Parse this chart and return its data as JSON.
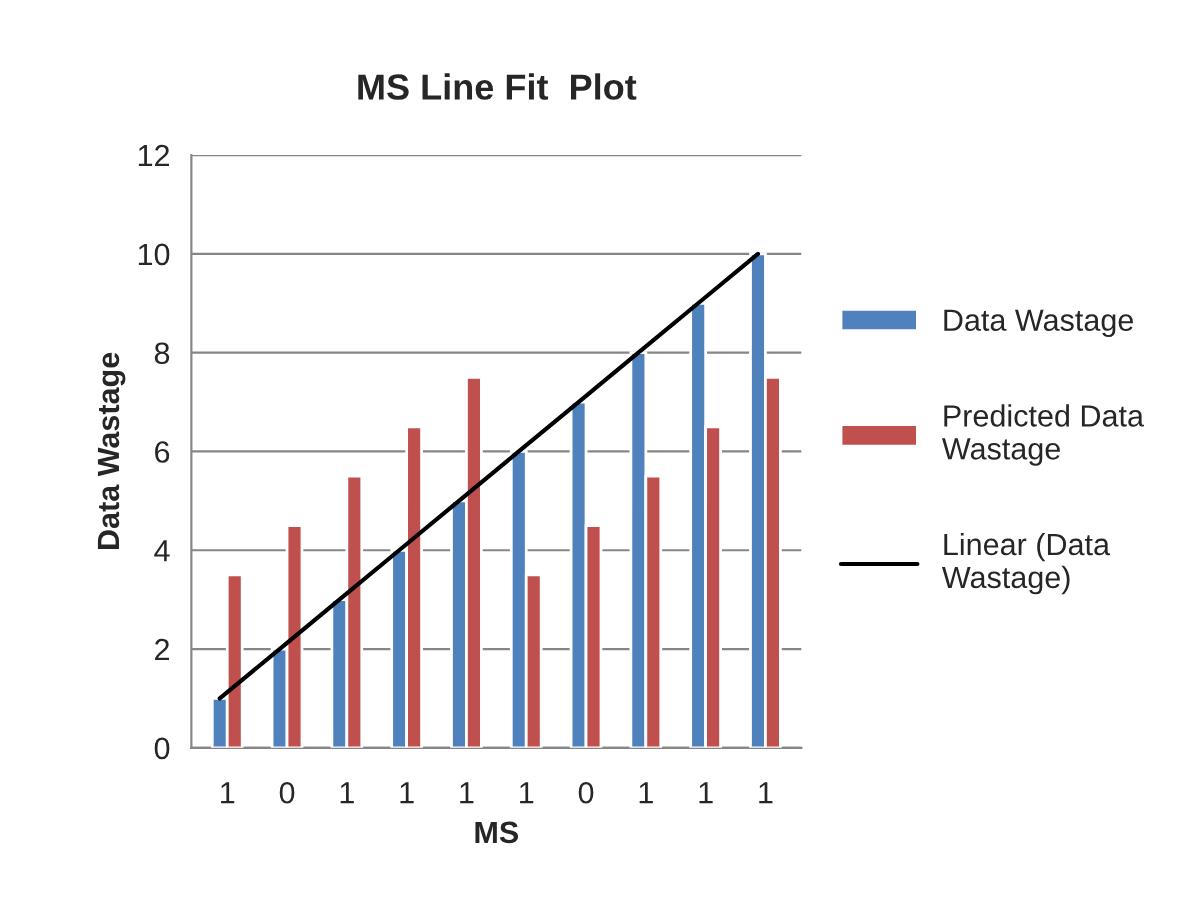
{
  "chart_data": {
    "type": "bar",
    "title": "MS Line Fit  Plot",
    "xlabel": "MS",
    "ylabel": "Data Wastage",
    "categories": [
      "1",
      "0",
      "1",
      "1",
      "1",
      "1",
      "0",
      "1",
      "1",
      "1"
    ],
    "series": [
      {
        "name": "Data Wastage",
        "color": "#4f81bd",
        "values": [
          1,
          2,
          3,
          4,
          5,
          6,
          7,
          8,
          9,
          10
        ]
      },
      {
        "name": "Predicted Data Wastage",
        "color": "#c0504d",
        "values": [
          3.5,
          4.5,
          5.5,
          6.5,
          7.5,
          3.5,
          4.5,
          5.5,
          6.5,
          7.5
        ]
      },
      {
        "name": "Linear (Data Wastage)",
        "type": "line",
        "color": "#000000",
        "values": [
          1,
          2,
          3,
          4,
          5,
          6,
          7,
          8,
          9,
          10
        ]
      }
    ],
    "ylim": [
      0,
      12
    ],
    "yticks": [
      0,
      2,
      4,
      6,
      8,
      10,
      12
    ],
    "grid": "y",
    "legend": "right"
  }
}
